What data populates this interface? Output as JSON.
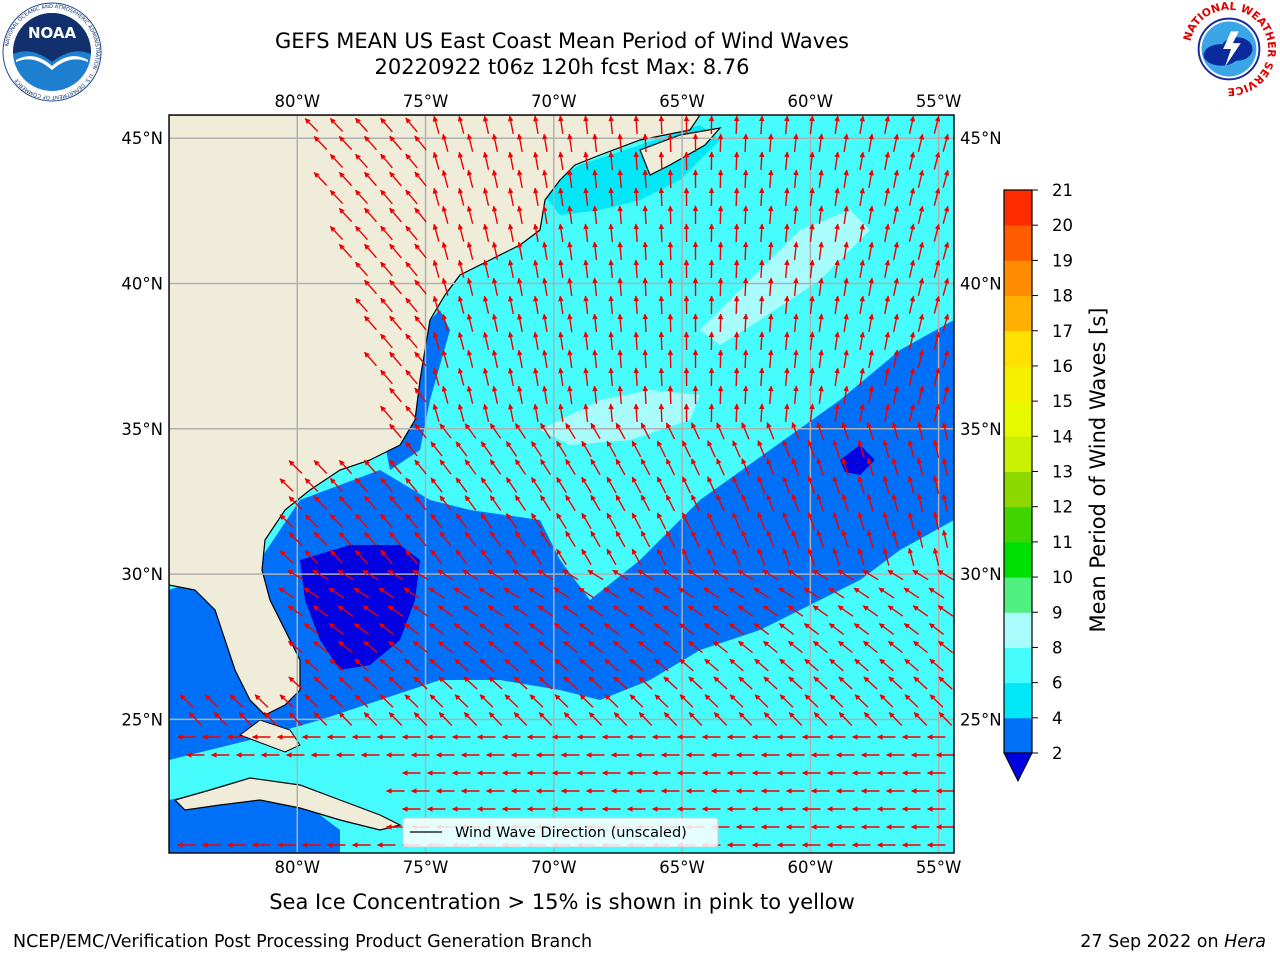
{
  "header": {
    "title_line1": "GEFS MEAN US East Coast Mean Period of Wind Waves",
    "title_line2": "20220922 t06z 120h fcst   Max: 8.76"
  },
  "logos": {
    "noaa": {
      "icon": "noaa-logo-icon",
      "text": "NOAA",
      "ring_text": "NATIONAL OCEANIC AND ATMOSPHERIC ADMINISTRATION · U.S. DEPARTMENT OF COMMERCE"
    },
    "nws": {
      "icon": "nws-logo-icon",
      "ring_text": "NATIONAL WEATHER SERVICE"
    }
  },
  "map": {
    "lon_labels": [
      "80°W",
      "75°W",
      "70°W",
      "65°W",
      "60°W",
      "55°W"
    ],
    "lat_labels": [
      "45°N",
      "40°N",
      "35°N",
      "30°N",
      "25°N"
    ],
    "lon_values": [
      -80,
      -75,
      -70,
      -65,
      -60,
      -55
    ],
    "lat_values": [
      45,
      40,
      35,
      30,
      25
    ],
    "extent": {
      "lon_min": -85,
      "lon_max": -54.4,
      "lat_min": 20.4,
      "lat_max": 45.8
    },
    "legend_label": "Wind Wave Direction (unscaled)",
    "colors": {
      "land": "#efedda",
      "grid": "#b0b0b0",
      "arrow": "#ee0000",
      "coast": "#000000"
    }
  },
  "colorbar": {
    "title": "Mean Period of Wind Waves [s]",
    "ticks": [
      "2",
      "4",
      "6",
      "8",
      "9",
      "10",
      "11",
      "12",
      "13",
      "14",
      "15",
      "16",
      "17",
      "18",
      "19",
      "20",
      "21"
    ],
    "colors": [
      "#0070f8",
      "#00e8f8",
      "#46fcfc",
      "#a8fcfc",
      "#50f080",
      "#00e000",
      "#40d400",
      "#8cd800",
      "#c8f000",
      "#e8f800",
      "#f4f000",
      "#ffe000",
      "#ffb000",
      "#ff8c00",
      "#ff5c00",
      "#ff2c00"
    ],
    "underflow_color": "#0000e0"
  },
  "footer": {
    "note": "Sea Ice Concentration > 15% is shown in pink to yellow",
    "left": "NCEP/EMC/Verification Post Processing Product Generation Branch",
    "right_date": "27 Sep 2022 on ",
    "right_host": "Hera"
  }
}
